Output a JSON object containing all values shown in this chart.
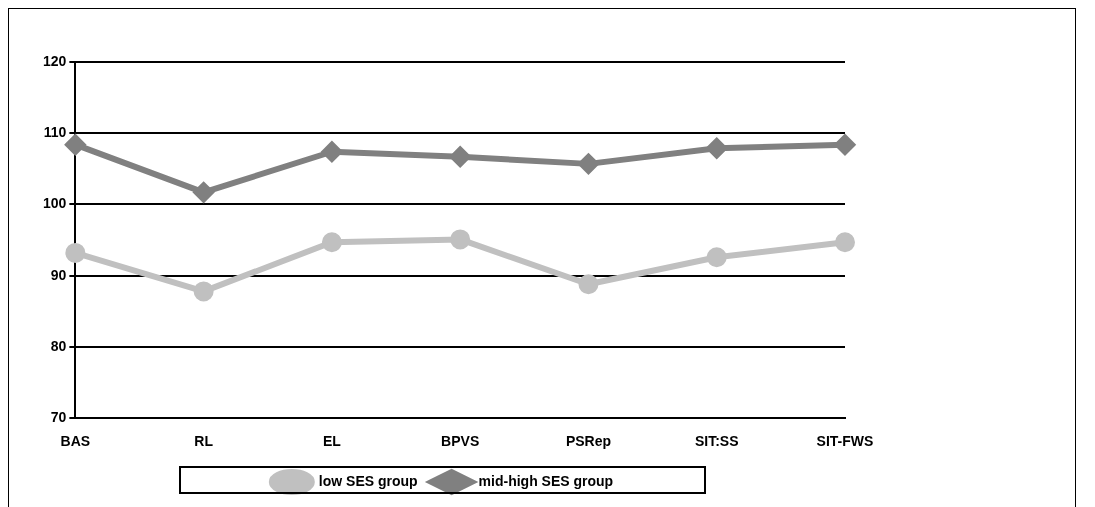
{
  "chart_data": {
    "type": "line",
    "categories": [
      "BAS",
      "RL",
      "EL",
      "BPVS",
      "PSRep",
      "SIT:SS",
      "SIT-FWS"
    ],
    "series": [
      {
        "name": "low SES group",
        "color": "#c0c0c0",
        "marker": "circle",
        "values": [
          93.2,
          87.8,
          94.7,
          95.1,
          88.8,
          92.6,
          94.7
        ]
      },
      {
        "name": "mid-high SES group",
        "color": "#808080",
        "marker": "diamond",
        "values": [
          108.4,
          101.7,
          107.4,
          106.7,
          105.7,
          107.9,
          108.4
        ]
      }
    ],
    "ylim": [
      70,
      120
    ],
    "yticks": [
      70,
      80,
      90,
      100,
      110,
      120
    ],
    "grid": "y",
    "legend": "bottom"
  }
}
